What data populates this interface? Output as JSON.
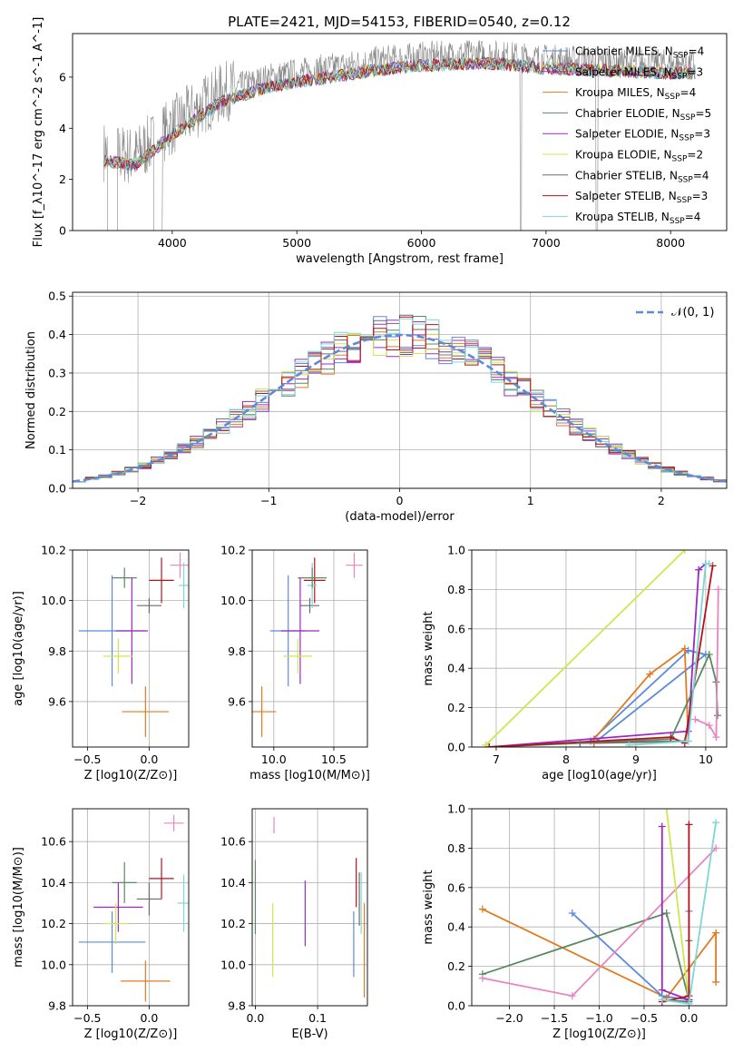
{
  "title": "PLATE=2421, MJD=54153, FIBERID=0540, z=0.12",
  "colors": {
    "chabrier_miles": "#5b8bd9",
    "salpeter_miles": "#a12fc0",
    "kroupa_miles": "#e07b20",
    "chabrier_elodie": "#5a8a62",
    "salpeter_elodie": "#9b28c4",
    "kroupa_elodie": "#cde84e",
    "chabrier_stelib": "#6b6b6b",
    "salpeter_stelib": "#b5121b",
    "kroupa_stelib": "#7fd6d6",
    "pink": "#e884c0",
    "data": "#888888"
  },
  "chart_data": [
    {
      "id": "spectrum",
      "type": "line",
      "xlabel": "wavelength [Angstrom, rest frame]",
      "ylabel": "Flux [f_λ10^-17 erg cm^-2 s^-1 A^-1]",
      "xlim": [
        3200,
        8450
      ],
      "ylim": [
        0,
        7.7
      ],
      "xticks": [
        "4000",
        "5000",
        "6000",
        "7000",
        "8000"
      ],
      "yticks": [
        "0",
        "2",
        "4",
        "6"
      ],
      "continuum": {
        "x": [
          3450,
          3700,
          4000,
          4400,
          4800,
          5200,
          5600,
          6000,
          6500,
          7000,
          7500,
          8000,
          8200
        ],
        "y": [
          3.1,
          2.9,
          4.1,
          5.4,
          6.0,
          6.3,
          6.6,
          6.8,
          6.9,
          6.7,
          6.6,
          6.5,
          6.5
        ]
      },
      "legend": [
        {
          "label": "Chabrier MILES, N_SSP=4",
          "color": "#5b8bd9"
        },
        {
          "label": "Salpeter MILES, N_SSP=3",
          "color": "#a12fc0"
        },
        {
          "label": "Kroupa MILES, N_SSP=4",
          "color": "#e07b20"
        },
        {
          "label": "Chabrier ELODIE, N_SSP=5",
          "color": "#5a8a62"
        },
        {
          "label": "Salpeter ELODIE, N_SSP=3",
          "color": "#9b28c4"
        },
        {
          "label": "Kroupa ELODIE, N_SSP=2",
          "color": "#cde84e"
        },
        {
          "label": "Chabrier STELIB, N_SSP=4",
          "color": "#6b6b6b"
        },
        {
          "label": "Salpeter STELIB, N_SSP=3",
          "color": "#b5121b"
        },
        {
          "label": "Kroupa STELIB, N_SSP=4",
          "color": "#7fd6d6"
        }
      ]
    },
    {
      "id": "residuals",
      "type": "bar",
      "xlabel": "(data-model)/error",
      "ylabel": "Normed distribution",
      "xlim": [
        -2.5,
        2.5
      ],
      "ylim": [
        0,
        0.51
      ],
      "xticks": [
        "−2",
        "−1",
        "0",
        "1",
        "2"
      ],
      "yticks": [
        "0.0",
        "0.1",
        "0.2",
        "0.3",
        "0.4",
        "0.5"
      ],
      "legend": "$\\mathcal{N}(0, 1)$",
      "bin_width": 0.1
    },
    {
      "id": "age_Z",
      "type": "scatter",
      "xlabel": "Z [log10(Z/Z⊙)]",
      "ylabel": "age [log10(age/yr)]",
      "xlim": [
        -0.62,
        0.32
      ],
      "ylim": [
        9.42,
        10.2
      ],
      "xticks": [
        "−0.5",
        "0.0"
      ],
      "yticks": [
        "9.6",
        "9.8",
        "10.0",
        "10.2"
      ],
      "points": [
        {
          "x": 0.1,
          "y": 10.08,
          "xerr": 0.1,
          "yerr": 0.09,
          "color": "#b5121b"
        },
        {
          "x": 0.0,
          "y": 9.98,
          "xerr": 0.1,
          "yerr": 0.03,
          "color": "#6b6b6b"
        },
        {
          "x": 0.25,
          "y": 10.14,
          "xerr": 0.08,
          "yerr": 0.05,
          "color": "#e884c0"
        },
        {
          "x": 0.28,
          "y": 10.06,
          "xerr": 0.04,
          "yerr": 0.09,
          "color": "#7fd6d6"
        },
        {
          "x": -0.2,
          "y": 10.09,
          "xerr": 0.1,
          "yerr": 0.04,
          "color": "#5a8a62"
        },
        {
          "x": -0.3,
          "y": 9.88,
          "xerr": 0.27,
          "yerr": 0.22,
          "color": "#5b8bd9"
        },
        {
          "x": -0.14,
          "y": 9.88,
          "xerr": 0.13,
          "yerr": 0.21,
          "color": "#9b28c4"
        },
        {
          "x": -0.25,
          "y": 9.78,
          "xerr": 0.12,
          "yerr": 0.07,
          "color": "#cde84e"
        },
        {
          "x": -0.03,
          "y": 9.56,
          "xerr": 0.19,
          "yerr": 0.1,
          "color": "#e07b20"
        }
      ]
    },
    {
      "id": "age_mass",
      "type": "scatter",
      "xlabel": "mass [log10(M/M⊙)]",
      "ylabel": "",
      "xlim": [
        9.82,
        10.78
      ],
      "ylim": [
        9.42,
        10.2
      ],
      "xticks": [
        "10.0",
        "10.5"
      ],
      "yticks": [
        "9.6",
        "9.8",
        "10.0",
        "10.2"
      ],
      "points": [
        {
          "x": 10.34,
          "y": 10.08,
          "xerr": 0.09,
          "yerr": 0.09,
          "color": "#b5121b"
        },
        {
          "x": 10.3,
          "y": 9.98,
          "xerr": 0.08,
          "yerr": 0.03,
          "color": "#6b6b6b"
        },
        {
          "x": 10.67,
          "y": 10.14,
          "xerr": 0.07,
          "yerr": 0.05,
          "color": "#e884c0"
        },
        {
          "x": 10.32,
          "y": 10.06,
          "xerr": 0.04,
          "yerr": 0.09,
          "color": "#7fd6d6"
        },
        {
          "x": 10.32,
          "y": 10.09,
          "xerr": 0.12,
          "yerr": 0.04,
          "color": "#5a8a62"
        },
        {
          "x": 10.12,
          "y": 9.88,
          "xerr": 0.15,
          "yerr": 0.22,
          "color": "#5b8bd9"
        },
        {
          "x": 10.22,
          "y": 9.88,
          "xerr": 0.16,
          "yerr": 0.21,
          "color": "#9b28c4"
        },
        {
          "x": 10.2,
          "y": 9.78,
          "xerr": 0.12,
          "yerr": 0.07,
          "color": "#cde84e"
        },
        {
          "x": 9.9,
          "y": 9.56,
          "xerr": 0.12,
          "yerr": 0.1,
          "color": "#e07b20"
        }
      ]
    },
    {
      "id": "weight_age",
      "type": "line",
      "xlabel": "age [log10(age/yr)]",
      "ylabel": "mass weight",
      "xlim": [
        6.65,
        10.3
      ],
      "ylim": [
        0,
        1.0
      ],
      "xticks": [
        "7",
        "8",
        "9",
        "10"
      ],
      "yticks": [
        "0.0",
        "0.2",
        "0.4",
        "0.6",
        "0.8",
        "1.0"
      ],
      "series": [
        {
          "color": "#cde84e",
          "x": [
            6.85,
            9.7
          ],
          "y": [
            0.01,
            1.0
          ]
        },
        {
          "color": "#5b8bd9",
          "x": [
            8.35,
            9.75,
            10.0,
            8.4
          ],
          "y": [
            0.03,
            0.49,
            0.47,
            0.02
          ]
        },
        {
          "color": "#e07b20",
          "x": [
            8.4,
            9.2,
            9.7,
            9.75,
            8.4
          ],
          "y": [
            0.04,
            0.37,
            0.5,
            0.03,
            0.02
          ]
        },
        {
          "color": "#9b28c4",
          "x": [
            6.9,
            9.75,
            9.9,
            10.0
          ],
          "y": [
            0.0,
            0.08,
            0.9,
            0.93
          ]
        },
        {
          "color": "#5a8a62",
          "x": [
            6.9,
            9.5,
            10.05,
            10.15,
            10.17
          ],
          "y": [
            0.0,
            0.04,
            0.47,
            0.33,
            0.16
          ]
        },
        {
          "color": "#b5121b",
          "x": [
            6.9,
            9.5,
            9.7,
            10.1
          ],
          "y": [
            0.0,
            0.05,
            0.02,
            0.92
          ]
        },
        {
          "color": "#6b6b6b",
          "x": [
            8.2,
            9.7
          ],
          "y": [
            0.02,
            0.03
          ]
        },
        {
          "color": "#7fd6d6",
          "x": [
            8.9,
            9.75,
            10.0,
            10.05
          ],
          "y": [
            0.01,
            0.03,
            0.93,
            0.93
          ]
        },
        {
          "color": "#e884c0",
          "x": [
            9.85,
            10.05,
            10.15,
            10.18
          ],
          "y": [
            0.14,
            0.11,
            0.05,
            0.8
          ]
        }
      ]
    },
    {
      "id": "mass_Z",
      "type": "scatter",
      "xlabel": "Z [log10(Z/Z⊙)]",
      "ylabel": "mass [log10(M/M⊙)]",
      "xlim": [
        -0.62,
        0.32
      ],
      "ylim": [
        9.8,
        10.76
      ],
      "xticks": [
        "−0.5",
        "0.0"
      ],
      "yticks": [
        "9.8",
        "10.0",
        "10.2",
        "10.4",
        "10.6"
      ],
      "points": [
        {
          "x": 0.1,
          "y": 10.42,
          "xerr": 0.1,
          "yerr": 0.1,
          "color": "#b5121b"
        },
        {
          "x": 0.0,
          "y": 10.32,
          "xerr": 0.1,
          "yerr": 0.08,
          "color": "#6b6b6b"
        },
        {
          "x": 0.2,
          "y": 10.69,
          "xerr": 0.08,
          "yerr": 0.04,
          "color": "#e884c0"
        },
        {
          "x": 0.28,
          "y": 10.3,
          "xerr": 0.05,
          "yerr": 0.14,
          "color": "#7fd6d6"
        },
        {
          "x": -0.2,
          "y": 10.4,
          "xerr": 0.1,
          "yerr": 0.1,
          "color": "#5a8a62"
        },
        {
          "x": -0.3,
          "y": 10.11,
          "xerr": 0.27,
          "yerr": 0.15,
          "color": "#5b8bd9"
        },
        {
          "x": -0.25,
          "y": 10.28,
          "xerr": 0.2,
          "yerr": 0.12,
          "color": "#9b28c4"
        },
        {
          "x": -0.27,
          "y": 10.2,
          "xerr": 0.1,
          "yerr": 0.1,
          "color": "#cde84e"
        },
        {
          "x": -0.03,
          "y": 9.92,
          "xerr": 0.2,
          "yerr": 0.1,
          "color": "#e07b20"
        }
      ]
    },
    {
      "id": "mass_EBV",
      "type": "scatter",
      "xlabel": "E(B-V)",
      "ylabel": "",
      "xlim": [
        -0.005,
        0.18
      ],
      "ylim": [
        9.8,
        10.76
      ],
      "xticks": [
        "0.0",
        "0.1"
      ],
      "yticks": [
        "9.8",
        "10.0",
        "10.2",
        "10.4",
        "10.6"
      ],
      "points": [
        {
          "x": 0.0,
          "y": 10.33,
          "xerr": 0.0,
          "yerr": 0.18,
          "color": "#5a8a62"
        },
        {
          "x": 0.028,
          "y": 10.12,
          "xerr": 0.0,
          "yerr": 0.18,
          "color": "#cde84e"
        },
        {
          "x": 0.03,
          "y": 10.68,
          "xerr": 0.0,
          "yerr": 0.04,
          "color": "#e884c0"
        },
        {
          "x": 0.08,
          "y": 10.25,
          "xerr": 0.0,
          "yerr": 0.16,
          "color": "#9b28c4"
        },
        {
          "x": 0.158,
          "y": 10.1,
          "xerr": 0.0,
          "yerr": 0.16,
          "color": "#5b8bd9"
        },
        {
          "x": 0.162,
          "y": 10.4,
          "xerr": 0.0,
          "yerr": 0.12,
          "color": "#b5121b"
        },
        {
          "x": 0.167,
          "y": 10.32,
          "xerr": 0.0,
          "yerr": 0.13,
          "color": "#6b6b6b"
        },
        {
          "x": 0.17,
          "y": 10.3,
          "xerr": 0.0,
          "yerr": 0.15,
          "color": "#7fd6d6"
        },
        {
          "x": 0.175,
          "y": 10.07,
          "xerr": 0.0,
          "yerr": 0.23,
          "color": "#e07b20"
        }
      ]
    },
    {
      "id": "weight_Z",
      "type": "line",
      "xlabel": "Z [log10(Z/Z⊙)]",
      "ylabel": "mass weight",
      "xlim": [
        -2.42,
        0.42
      ],
      "ylim": [
        0,
        1.0
      ],
      "xticks": [
        "−2.0",
        "−1.5",
        "−1.0",
        "−0.5",
        "0.0"
      ],
      "yticks": [
        "0.0",
        "0.2",
        "0.4",
        "0.6",
        "0.8",
        "1.0"
      ],
      "series": [
        {
          "color": "#e07b20",
          "x": [
            -2.3,
            -0.25,
            0.3,
            0.3
          ],
          "y": [
            0.49,
            0.04,
            0.37,
            0.12
          ]
        },
        {
          "color": "#5b8bd9",
          "x": [
            -1.3,
            -0.3,
            0.0,
            0.0
          ],
          "y": [
            0.47,
            0.05,
            0.03,
            0.48
          ]
        },
        {
          "color": "#5a8a62",
          "x": [
            -2.3,
            -0.25,
            0.0,
            0.0
          ],
          "y": [
            0.16,
            0.47,
            0.03,
            0.33
          ]
        },
        {
          "color": "#e884c0",
          "x": [
            -2.3,
            -1.3,
            0.3
          ],
          "y": [
            0.14,
            0.05,
            0.8
          ]
        },
        {
          "color": "#cde84e",
          "x": [
            -0.25,
            0.0
          ],
          "y": [
            1.0,
            0.02
          ]
        },
        {
          "color": "#9b28c4",
          "x": [
            -0.3,
            -0.3,
            0.0
          ],
          "y": [
            0.91,
            0.08,
            0.03
          ]
        },
        {
          "color": "#b5121b",
          "x": [
            0.0,
            0.0,
            -0.3
          ],
          "y": [
            0.92,
            0.05,
            0.02
          ]
        },
        {
          "color": "#6b6b6b",
          "x": [
            -0.3,
            0.0
          ],
          "y": [
            0.03,
            0.02
          ]
        },
        {
          "color": "#7fd6d6",
          "x": [
            -0.3,
            0.0,
            0.3
          ],
          "y": [
            0.03,
            0.01,
            0.93
          ]
        }
      ]
    }
  ]
}
